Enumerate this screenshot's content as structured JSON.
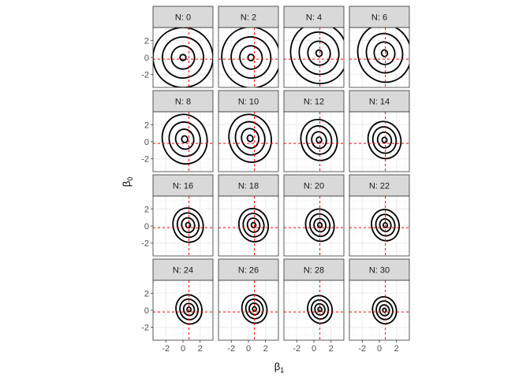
{
  "chart_data": {
    "type": "contour",
    "facet_prefix": "N: ",
    "panels": [
      {
        "n": 0,
        "label": "N: 0",
        "center": [
          0.0,
          0.0
        ],
        "radii": [
          0.35,
          1.35,
          2.4,
          3.5
        ],
        "elong": 1.0
      },
      {
        "n": 2,
        "label": "N: 2",
        "center": [
          0.3,
          0.0
        ],
        "radii": [
          0.35,
          1.3,
          2.3,
          3.4
        ],
        "elong": 1.05
      },
      {
        "n": 4,
        "label": "N: 4",
        "center": [
          0.6,
          0.5
        ],
        "radii": [
          0.35,
          1.3,
          2.3,
          3.3
        ],
        "elong": 1.08
      },
      {
        "n": 6,
        "label": "N: 6",
        "center": [
          0.6,
          0.5
        ],
        "radii": [
          0.35,
          1.2,
          2.1,
          3.1
        ],
        "elong": 1.1
      },
      {
        "n": 8,
        "label": "N: 8",
        "center": [
          0.2,
          0.3
        ],
        "radii": [
          0.35,
          1.05,
          1.8,
          2.6
        ],
        "elong": 1.12
      },
      {
        "n": 10,
        "label": "N: 10",
        "center": [
          0.2,
          0.4
        ],
        "radii": [
          0.33,
          1.0,
          1.7,
          2.45
        ],
        "elong": 1.15
      },
      {
        "n": 12,
        "label": "N: 12",
        "center": [
          0.6,
          0.2
        ],
        "radii": [
          0.3,
          0.85,
          1.45,
          2.1
        ],
        "elong": 1.15
      },
      {
        "n": 14,
        "label": "N: 14",
        "center": [
          0.6,
          0.2
        ],
        "radii": [
          0.28,
          0.8,
          1.35,
          1.9
        ],
        "elong": 1.15
      },
      {
        "n": 16,
        "label": "N: 16",
        "center": [
          0.6,
          0.1
        ],
        "radii": [
          0.27,
          0.75,
          1.25,
          1.75
        ],
        "elong": 1.15
      },
      {
        "n": 18,
        "label": "N: 18",
        "center": [
          0.6,
          0.1
        ],
        "radii": [
          0.26,
          0.72,
          1.2,
          1.7
        ],
        "elong": 1.15
      },
      {
        "n": 20,
        "label": "N: 20",
        "center": [
          0.7,
          0.1
        ],
        "radii": [
          0.25,
          0.68,
          1.15,
          1.65
        ],
        "elong": 1.15
      },
      {
        "n": 22,
        "label": "N: 22",
        "center": [
          0.7,
          0.1
        ],
        "radii": [
          0.24,
          0.65,
          1.1,
          1.6
        ],
        "elong": 1.15
      },
      {
        "n": 24,
        "label": "N: 24",
        "center": [
          0.7,
          0.1
        ],
        "radii": [
          0.23,
          0.62,
          1.05,
          1.5
        ],
        "elong": 1.15
      },
      {
        "n": 26,
        "label": "N: 26",
        "center": [
          0.7,
          0.15
        ],
        "radii": [
          0.22,
          0.6,
          1.0,
          1.45
        ],
        "elong": 1.15
      },
      {
        "n": 28,
        "label": "N: 28",
        "center": [
          0.7,
          0.1
        ],
        "radii": [
          0.22,
          0.58,
          0.98,
          1.42
        ],
        "elong": 1.15
      },
      {
        "n": 30,
        "label": "N: 30",
        "center": [
          0.6,
          0.0
        ],
        "radii": [
          0.21,
          0.56,
          0.95,
          1.38
        ],
        "elong": 1.15
      }
    ],
    "xlim": [
      -3.5,
      3.5
    ],
    "ylim": [
      -3.5,
      3.5
    ],
    "x_ticks": [
      -2,
      0,
      2
    ],
    "y_ticks": [
      -2,
      0,
      2
    ],
    "xlabel": "β",
    "xlabel_sub": "1",
    "ylabel": "β",
    "ylabel_sub": "0",
    "reference_x": 0.7,
    "reference_y": -0.2,
    "grid": true,
    "colors": {
      "contour": "#000000",
      "reference": "#ff0000",
      "strip_fill": "#d9d9d9",
      "strip_border": "#333333",
      "panel_border": "#333333",
      "grid_major": "#ebebeb",
      "grid_minor": "#f5f5f5",
      "tick_text": "#4d4d4d"
    }
  }
}
